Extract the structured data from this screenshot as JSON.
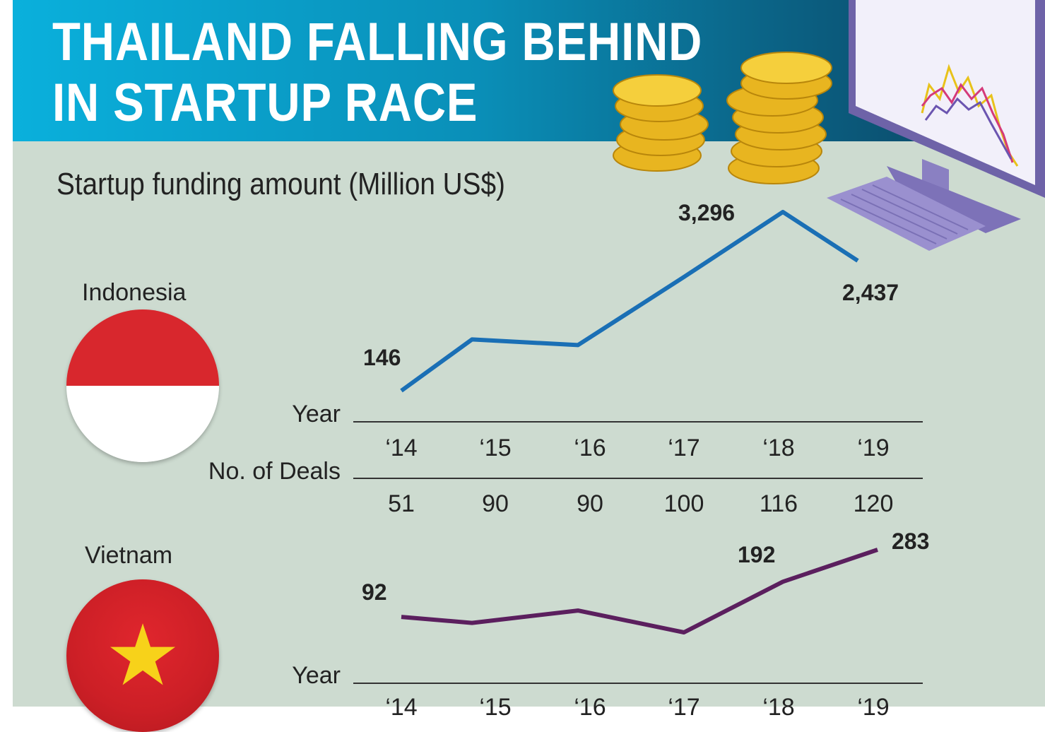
{
  "title_line1": "THAILAND FALLING BEHIND",
  "title_line2": "IN STARTUP RACE",
  "subtitle": "Startup funding amount (Million US$)",
  "colors": {
    "indonesia_line": "#1a6fb5",
    "vietnam_line": "#5b1f5e",
    "banner": "#0a8fb8",
    "background": "#cddbd0"
  },
  "row_labels": {
    "year": "Year",
    "deals": "No. of Deals"
  },
  "chart_data": [
    {
      "type": "line",
      "country": "Indonesia",
      "categories": [
        "‘14",
        "‘15",
        "‘16",
        "‘17",
        "‘18",
        "‘19"
      ],
      "series": [
        {
          "values": [
            146,
            1050,
            950,
            2150,
            3296,
            2437
          ]
        }
      ],
      "labels": [
        {
          "index": 0,
          "text": "146"
        },
        {
          "index": 4,
          "text": "3,296"
        },
        {
          "index": 5,
          "text": "2,437"
        }
      ],
      "deals": [
        "51",
        "90",
        "90",
        "100",
        "116",
        "120"
      ]
    },
    {
      "type": "line",
      "country": "Vietnam",
      "categories": [
        "‘14",
        "‘15",
        "‘16",
        "‘17",
        "‘18",
        "‘19"
      ],
      "series": [
        {
          "values": [
            92,
            75,
            110,
            48,
            192,
            283
          ]
        }
      ],
      "labels": [
        {
          "index": 0,
          "text": "92"
        },
        {
          "index": 4,
          "text": "192"
        },
        {
          "index": 5,
          "text": "283"
        }
      ]
    }
  ]
}
